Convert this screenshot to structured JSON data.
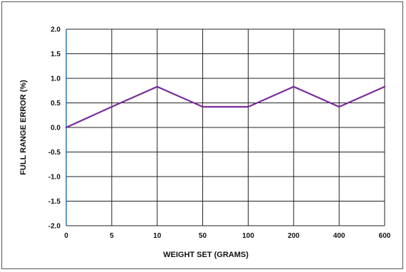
{
  "chart_data": {
    "type": "line",
    "xlabel": "WEIGHT SET (GRAMS)",
    "ylabel": "FULL RANGE ERROR (%)",
    "categories": [
      "0",
      "5",
      "10",
      "50",
      "100",
      "200",
      "400",
      "600"
    ],
    "y_tick_labels": [
      "2.0",
      "1.5",
      "1.0",
      "0.5",
      "0.0",
      "-0.5",
      "-1.0",
      "-1.5",
      "-2.0"
    ],
    "ylim": [
      -2.0,
      2.0
    ],
    "grid": true,
    "series": [
      {
        "values": [
          0.0,
          0.42,
          0.83,
          0.42,
          0.42,
          0.83,
          0.42,
          0.83
        ]
      }
    ],
    "colors": {
      "line": "#7a2c9a",
      "grid": "#222222",
      "axis": "#2e74b5"
    }
  }
}
